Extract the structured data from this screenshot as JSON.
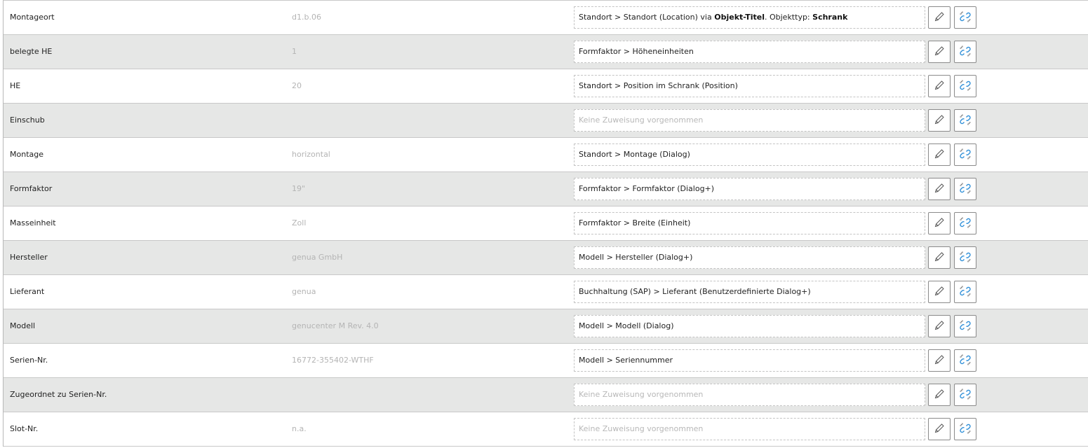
{
  "accent_color": "#2f8fd8",
  "icons": {
    "edit": "pencil-icon",
    "unlink": "unlink-icon"
  },
  "rows": [
    {
      "label": "Montageort",
      "value": "d1.b.06",
      "mapping": [
        {
          "t": "Standort > Standort (Location) via ",
          "b": false
        },
        {
          "t": "Objekt-Titel",
          "b": true
        },
        {
          "t": ". Objekttyp: ",
          "b": false
        },
        {
          "t": "Schrank",
          "b": true
        }
      ]
    },
    {
      "label": "belegte HE",
      "value": "1",
      "mapping": [
        {
          "t": "Formfaktor > Höheneinheiten",
          "b": false
        }
      ]
    },
    {
      "label": "HE",
      "value": "20",
      "mapping": [
        {
          "t": "Standort > Position im Schrank (Position)",
          "b": false
        }
      ]
    },
    {
      "label": "Einschub",
      "value": "",
      "empty": "Keine Zuweisung vorgenommen",
      "mapping": []
    },
    {
      "label": "Montage",
      "value": "horizontal",
      "mapping": [
        {
          "t": "Standort > Montage (Dialog)",
          "b": false
        }
      ]
    },
    {
      "label": "Formfaktor",
      "value": "19\"",
      "mapping": [
        {
          "t": "Formfaktor > Formfaktor (Dialog+)",
          "b": false
        }
      ]
    },
    {
      "label": "Masseinheit",
      "value": "Zoll",
      "mapping": [
        {
          "t": "Formfaktor > Breite (Einheit)",
          "b": false
        }
      ]
    },
    {
      "label": "Hersteller",
      "value": "genua GmbH",
      "mapping": [
        {
          "t": "Modell > Hersteller (Dialog+)",
          "b": false
        }
      ]
    },
    {
      "label": "Lieferant",
      "value": "genua",
      "mapping": [
        {
          "t": "Buchhaltung (SAP) > Lieferant (Benutzerdefinierte Dialog+)",
          "b": false
        }
      ]
    },
    {
      "label": "Modell",
      "value": "genucenter M Rev. 4.0",
      "mapping": [
        {
          "t": "Modell > Modell (Dialog)",
          "b": false
        }
      ]
    },
    {
      "label": "Serien-Nr.",
      "value": "16772-355402-WTHF",
      "mapping": [
        {
          "t": "Modell > Seriennummer",
          "b": false
        }
      ]
    },
    {
      "label": "Zugeordnet zu Serien-Nr.",
      "value": "",
      "empty": "Keine Zuweisung vorgenommen",
      "mapping": []
    },
    {
      "label": "Slot-Nr.",
      "value": "n.a.",
      "empty": "Keine Zuweisung vorgenommen",
      "mapping": []
    }
  ]
}
